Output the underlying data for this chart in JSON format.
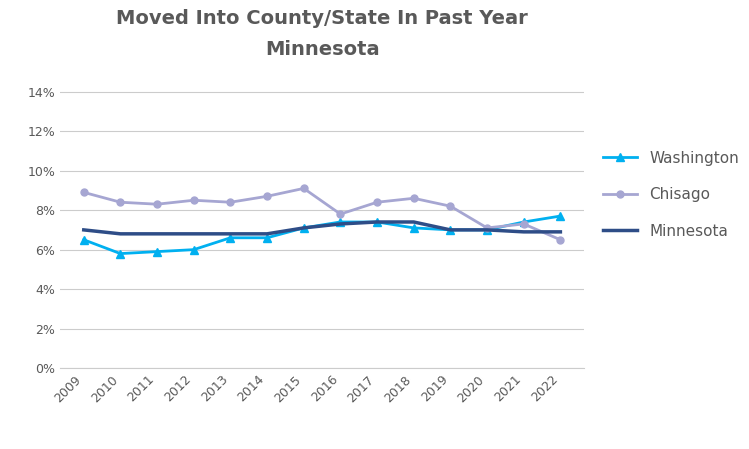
{
  "title": "Moved Into County/State In Past Year",
  "subtitle": "Minnesota",
  "years": [
    2009,
    2010,
    2011,
    2012,
    2013,
    2014,
    2015,
    2016,
    2017,
    2018,
    2019,
    2020,
    2021,
    2022
  ],
  "washington": [
    0.065,
    0.058,
    0.059,
    0.06,
    0.066,
    0.066,
    0.071,
    0.074,
    0.074,
    0.071,
    0.07,
    0.07,
    0.074,
    0.077
  ],
  "chisago": [
    0.089,
    0.084,
    0.083,
    0.085,
    0.084,
    0.087,
    0.091,
    0.078,
    0.084,
    0.086,
    0.082,
    0.071,
    0.073,
    0.065
  ],
  "minnesota": [
    0.07,
    0.068,
    0.068,
    0.068,
    0.068,
    0.068,
    0.071,
    0.073,
    0.074,
    0.074,
    0.07,
    0.07,
    0.069,
    0.069
  ],
  "washington_color": "#00B0F0",
  "chisago_color": "#A6A6D2",
  "minnesota_color": "#2E4D87",
  "title_color": "#595959",
  "subtitle_color": "#595959",
  "legend_text_color": "#595959",
  "ylim": [
    0.0,
    0.15
  ],
  "yticks": [
    0.0,
    0.02,
    0.04,
    0.06,
    0.08,
    0.1,
    0.12,
    0.14
  ],
  "title_fontsize": 14,
  "subtitle_fontsize": 11,
  "legend_fontsize": 11,
  "tick_fontsize": 9,
  "background_color": "#FFFFFF",
  "grid_color": "#CCCCCC"
}
